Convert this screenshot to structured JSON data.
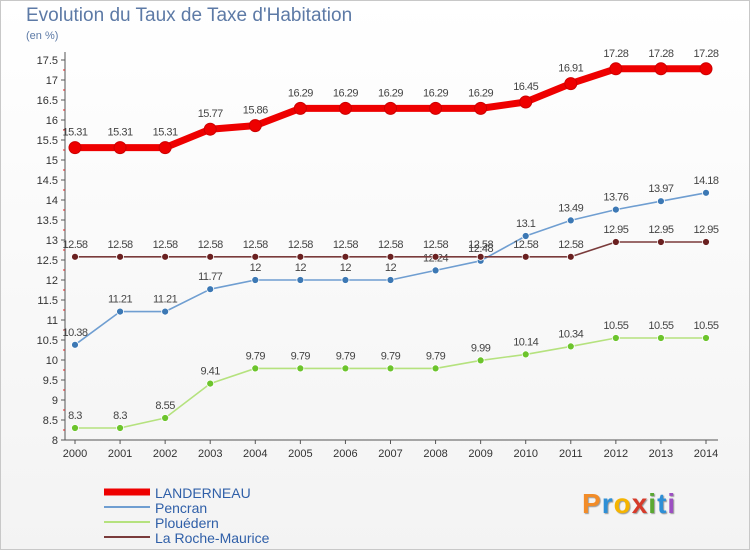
{
  "chart_data": {
    "type": "line",
    "title": "Evolution du Taux de Taxe d'Habitation",
    "unit_label": "(en %)",
    "x": [
      "2000",
      "2001",
      "2002",
      "2003",
      "2004",
      "2005",
      "2006",
      "2007",
      "2008",
      "2009",
      "2010",
      "2011",
      "2012",
      "2013",
      "2014"
    ],
    "ylim": [
      8,
      17.5
    ],
    "ytick_labels": [
      "8",
      "8.5",
      "9",
      "9.5",
      "10",
      "10.5",
      "11",
      "11.5",
      "12",
      "12.5",
      "13",
      "13.5",
      "14",
      "14.5",
      "15",
      "15.5",
      "16",
      "16.5",
      "17",
      "17.5"
    ],
    "grid": false,
    "legend_position": "bottom-left",
    "series": [
      {
        "name": "LANDERNEAU",
        "color": "#ee0000",
        "emphasis": true,
        "values": [
          15.31,
          15.31,
          15.31,
          15.77,
          15.86,
          16.29,
          16.29,
          16.29,
          16.29,
          16.29,
          16.45,
          16.91,
          17.28,
          17.28,
          17.28
        ],
        "labels": [
          "15.31",
          "15.31",
          "15.31",
          "15.77",
          "15.86",
          "16.29",
          "16.29",
          "16.29",
          "16.29",
          "16.29",
          "16.45",
          "16.91",
          "17.28",
          "17.28",
          "17.28"
        ]
      },
      {
        "name": "Pencran",
        "color": "#6f9ed1",
        "marker_color": "#3c78b4",
        "values": [
          10.38,
          11.21,
          11.21,
          11.77,
          12,
          12,
          12,
          12,
          12.24,
          12.48,
          13.1,
          13.49,
          13.76,
          13.97,
          14.18
        ],
        "labels": [
          "10.38",
          "11.21",
          "11.21",
          "11.77",
          "12",
          "12",
          "12",
          "12",
          "12.24",
          "12.48",
          "13.1",
          "13.49",
          "13.76",
          "13.97",
          "14.18"
        ]
      },
      {
        "name": "Plouédern",
        "color": "#b5e27e",
        "marker_color": "#6cc42c",
        "values": [
          8.3,
          8.3,
          8.55,
          9.41,
          9.79,
          9.79,
          9.79,
          9.79,
          9.79,
          9.99,
          10.14,
          10.34,
          10.55,
          10.55,
          10.55
        ],
        "labels": [
          "8.3",
          "8.3",
          "8.55",
          "9.41",
          "9.79",
          "9.79",
          "9.79",
          "9.79",
          "9.79",
          "9.99",
          "10.14",
          "10.34",
          "10.55",
          "10.55",
          "10.55"
        ]
      },
      {
        "name": "La Roche-Maurice",
        "color": "#7a3b3b",
        "marker_color": "#6a2020",
        "values": [
          12.58,
          12.58,
          12.58,
          12.58,
          12.58,
          12.58,
          12.58,
          12.58,
          12.58,
          12.58,
          12.58,
          12.58,
          12.95,
          12.95,
          12.95
        ],
        "labels": [
          "12.58",
          "12.58",
          "12.58",
          "12.58",
          "12.58",
          "12.58",
          "12.58",
          "12.58",
          "12.58",
          "12.58",
          "12.58",
          "12.58",
          "12.95",
          "12.95",
          "12.95"
        ]
      }
    ]
  },
  "brand": {
    "letters": [
      "P",
      "r",
      "o",
      "x",
      "i",
      "t",
      "i"
    ],
    "colors": [
      "#f28c28",
      "#2e8fd6",
      "#f5b400",
      "#d63a2a",
      "#5aa832",
      "#2e8fd6",
      "#9c4fc2"
    ]
  }
}
